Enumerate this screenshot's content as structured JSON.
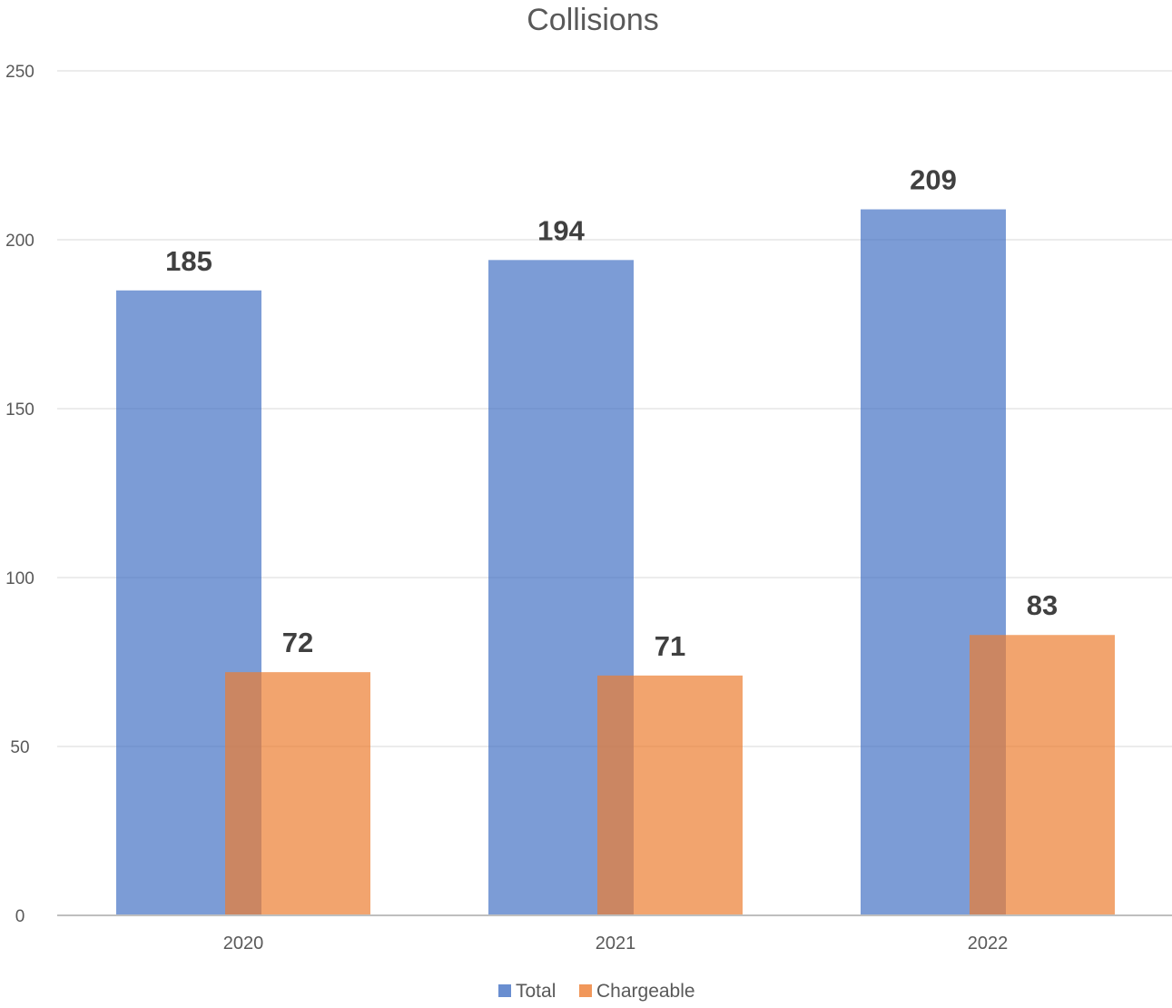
{
  "chart_data": {
    "type": "bar",
    "title": "Collisions",
    "xlabel": "",
    "ylabel": "",
    "categories": [
      "2020",
      "2021",
      "2022"
    ],
    "series": [
      {
        "name": "Total",
        "values": [
          185,
          194,
          209
        ],
        "color": "#4472C4"
      },
      {
        "name": "Chargeable",
        "values": [
          72,
          71,
          83
        ],
        "color": "#ED7D31"
      }
    ],
    "ylim": [
      0,
      250
    ],
    "yticks": [
      0,
      50,
      100,
      150,
      200,
      250
    ],
    "grid": true,
    "legend": "bottom",
    "data_labels": true
  }
}
